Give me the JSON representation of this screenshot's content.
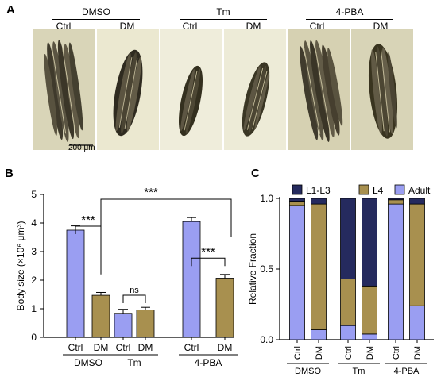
{
  "panel_a": {
    "letter": "A",
    "groups": [
      {
        "name": "DMSO",
        "sub": [
          "Ctrl",
          "DM"
        ]
      },
      {
        "name": "Tm",
        "sub": [
          "Ctrl",
          "DM"
        ]
      },
      {
        "name": "4-PBA",
        "sub": [
          "Ctrl",
          "DM"
        ]
      }
    ],
    "scale_bar": "200 μm",
    "colors": {
      "background_light": "#dcd8c0",
      "worm_dark": "#4a4535"
    }
  },
  "chart_data": [
    {
      "type": "bar",
      "panel": "B",
      "categories": [
        "Ctrl",
        "DM",
        "Ctrl",
        "DM",
        "Ctrl",
        "DM"
      ],
      "groups": [
        "DMSO",
        "Tm",
        "4-PBA"
      ],
      "values": [
        3.75,
        1.47,
        0.84,
        0.96,
        4.05,
        2.07
      ],
      "errors": [
        0.15,
        0.1,
        0.14,
        0.09,
        0.14,
        0.13
      ],
      "colors": [
        "#9a9ef2",
        "#a8904f",
        "#9a9ef2",
        "#a8904f",
        "#9a9ef2",
        "#a8904f"
      ],
      "ylabel": "Body size (×10⁶ μm³)",
      "ylim": [
        0,
        5
      ],
      "yticks": [
        "0",
        "1",
        "2",
        "3",
        "4",
        "5"
      ],
      "significance": [
        {
          "between": [
            0,
            1
          ],
          "label": "***"
        },
        {
          "between": [
            2,
            3
          ],
          "label": "ns"
        },
        {
          "between": [
            4,
            5
          ],
          "label": "***"
        },
        {
          "between": [
            1,
            5
          ],
          "label": "***"
        }
      ]
    },
    {
      "type": "bar",
      "stacked": true,
      "panel": "C",
      "categories": [
        "Ctrl",
        "DM",
        "Ctrl",
        "DM",
        "Ctrl",
        "DM"
      ],
      "groups": [
        "DMSO",
        "Tm",
        "4-PBA"
      ],
      "series": [
        {
          "name": "Adult",
          "color": "#9a9ef2",
          "values": [
            0.95,
            0.07,
            0.1,
            0.04,
            0.96,
            0.24
          ]
        },
        {
          "name": "L4",
          "color": "#a8904f",
          "values": [
            0.03,
            0.89,
            0.33,
            0.34,
            0.03,
            0.72
          ]
        },
        {
          "name": "L1-L3",
          "color": "#252a5e",
          "values": [
            0.02,
            0.04,
            0.57,
            0.62,
            0.01,
            0.04
          ]
        }
      ],
      "ylabel": "Relative Fraction",
      "ylim": [
        0,
        1
      ],
      "yticks": [
        "0.0",
        "0.5",
        "1.0"
      ]
    }
  ],
  "letters": {
    "b": "B",
    "c": "C"
  }
}
